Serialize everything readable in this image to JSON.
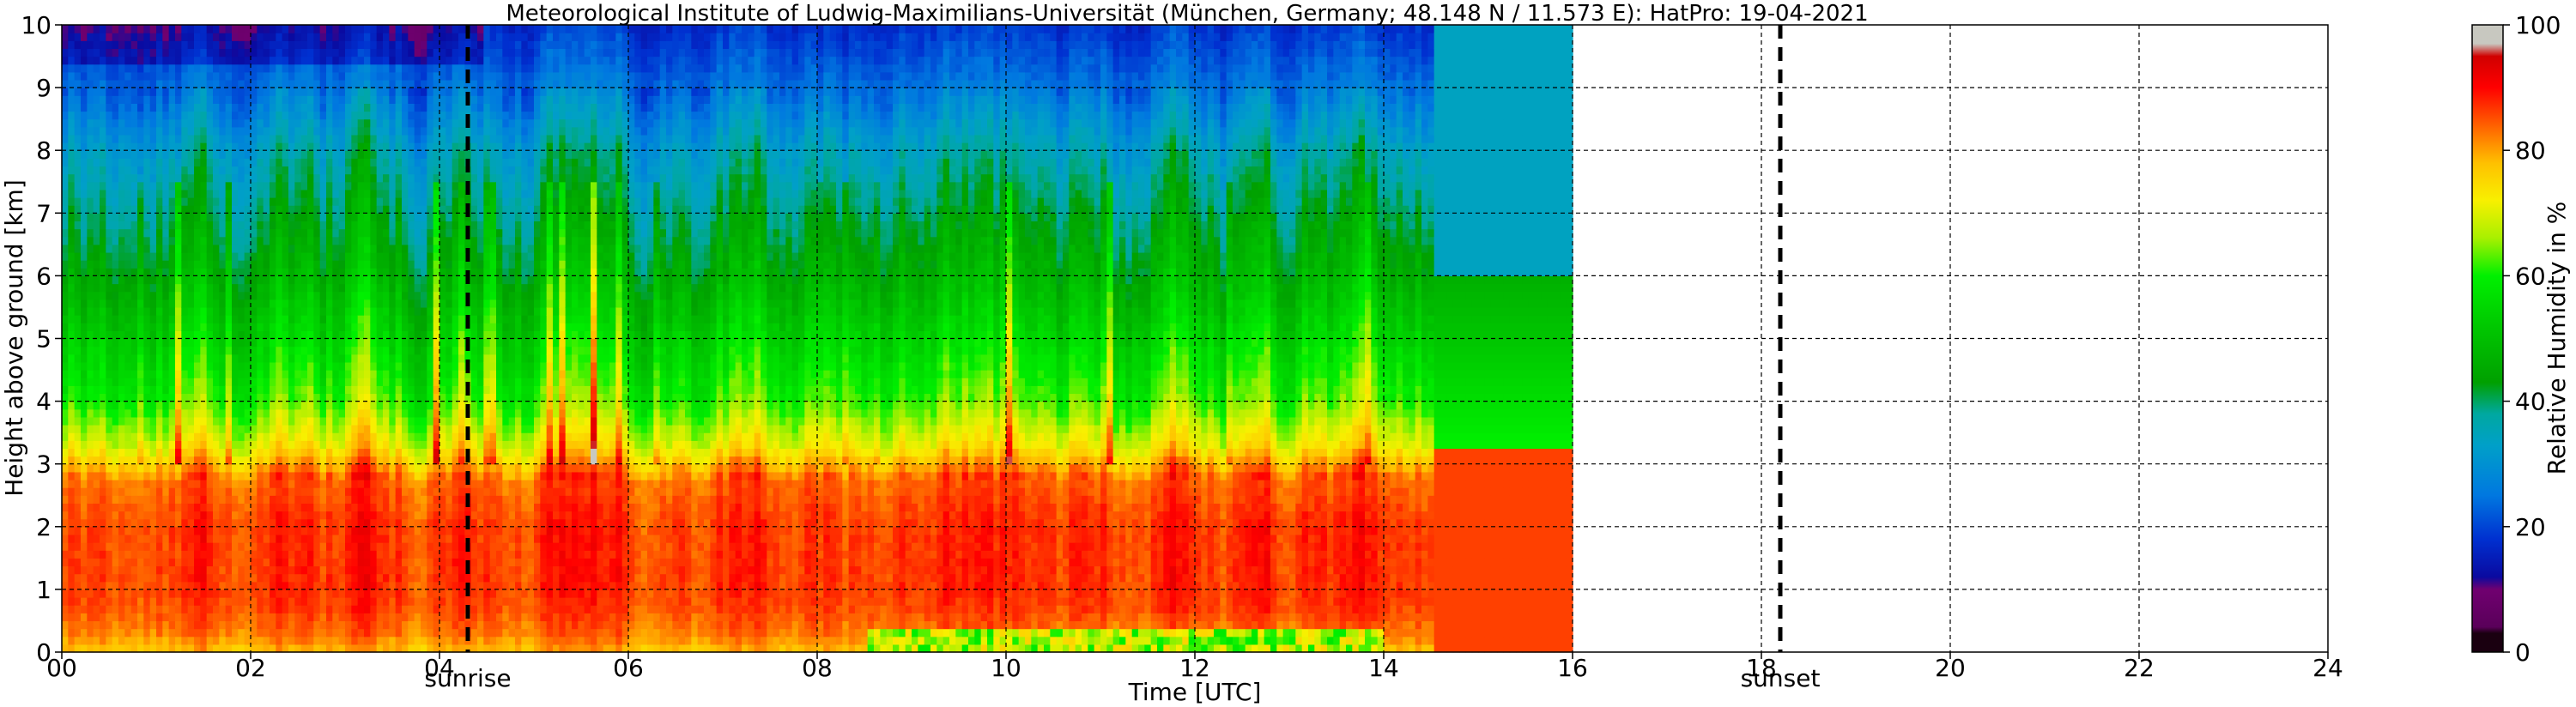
{
  "chart_data": {
    "type": "heatmap",
    "title": "Meteorological Institute of Ludwig-Maximilians-Universität (München, Germany; 48.148 N / 11.573 E):    HatPro: 19-04-2021",
    "xlabel": "Time [UTC]",
    "ylabel": "Height above ground [km]",
    "xlim": [
      0,
      24
    ],
    "ylim": [
      0,
      10
    ],
    "x_ticks": [
      "00",
      "02",
      "04",
      "06",
      "08",
      "10",
      "12",
      "14",
      "16",
      "18",
      "20",
      "22",
      "24"
    ],
    "y_ticks": [
      "0",
      "1",
      "2",
      "3",
      "4",
      "5",
      "6",
      "7",
      "8",
      "9",
      "10"
    ],
    "grid": true,
    "data_end_hour": 16,
    "colorbar": {
      "label": "Relative Humidity in %",
      "range": [
        0,
        100
      ],
      "ticks": [
        "0",
        "20",
        "40",
        "60",
        "80",
        "100"
      ]
    },
    "events": [
      {
        "label": "sunrise",
        "hour": 4.3
      },
      {
        "label": "sunset",
        "hour": 18.2
      }
    ],
    "rh_profile": {
      "heights_km": [
        0.0,
        0.3,
        0.7,
        1.0,
        2.0,
        2.8,
        3.3,
        4.0,
        5.0,
        6.0,
        7.0,
        8.0,
        9.0,
        10.0
      ],
      "rh_percent": [
        78,
        83,
        86,
        87,
        87,
        84,
        72,
        62,
        55,
        47,
        41,
        35,
        25,
        18
      ]
    },
    "colors": {
      "background": "#ffffff",
      "grid": "#000000",
      "event_line": "#000000"
    }
  }
}
